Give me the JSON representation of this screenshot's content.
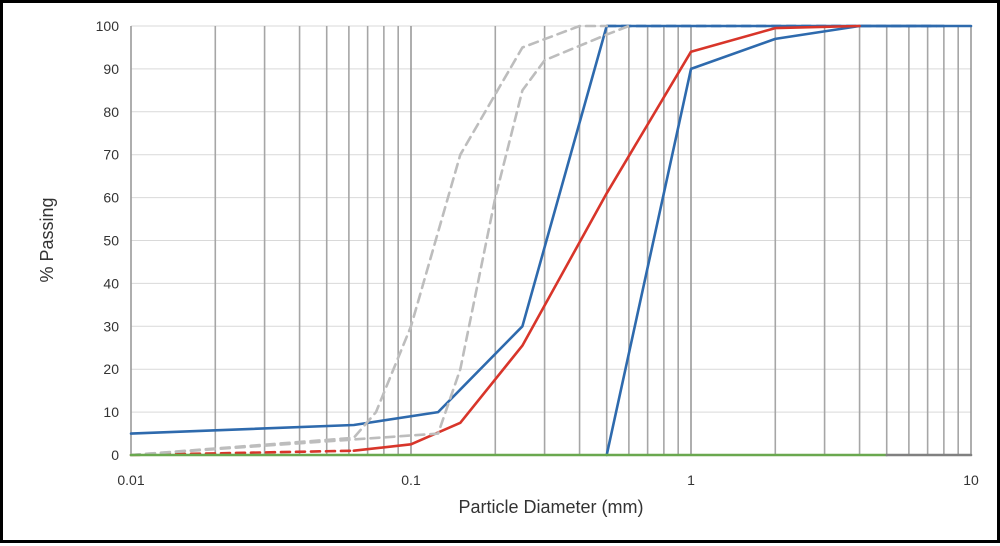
{
  "chart_data": {
    "type": "line",
    "title": "",
    "xlabel": "Particle  Diameter (mm)",
    "ylabel": "% Passing",
    "x_scale": "log",
    "xlim": [
      0.01,
      10
    ],
    "ylim": [
      0,
      100
    ],
    "x_tick_labels": [
      "0.01",
      "0.1",
      "1",
      "10"
    ],
    "y_tick_labels": [
      "0",
      "10",
      "20",
      "30",
      "40",
      "50",
      "60",
      "70",
      "80",
      "90",
      "100"
    ],
    "grid": {
      "x_major": true,
      "x_minor": true,
      "y_major": true
    },
    "legend": "none",
    "series": [
      {
        "color": "#2e6aad",
        "dash": "solid",
        "points": [
          [
            0.01,
            5
          ],
          [
            0.0625,
            7
          ],
          [
            0.125,
            10
          ],
          [
            0.25,
            30
          ],
          [
            0.5,
            100
          ],
          [
            10,
            100
          ]
        ]
      },
      {
        "color": "#2e6aad",
        "dash": "solid",
        "points": [
          [
            0.5,
            0
          ],
          [
            1,
            90
          ],
          [
            2,
            97
          ],
          [
            4,
            100
          ],
          [
            7.5,
            100
          ]
        ]
      },
      {
        "color": "#2e6aad",
        "dash": "dashed",
        "points": [
          [
            0.5,
            100
          ],
          [
            8,
            100
          ]
        ]
      },
      {
        "color": "#d8352a",
        "dash": "solid",
        "points": [
          [
            0.0625,
            1
          ],
          [
            0.1,
            2.5
          ],
          [
            0.15,
            7.5
          ],
          [
            0.25,
            25.5
          ],
          [
            0.5,
            61
          ],
          [
            1,
            94
          ],
          [
            2,
            99.5
          ],
          [
            4,
            100
          ]
        ]
      },
      {
        "color": "#d8352a",
        "dash": "dashed",
        "points": [
          [
            0.01,
            0
          ],
          [
            0.0625,
            1
          ]
        ]
      },
      {
        "color": "#bdbdbd",
        "dash": "dashed",
        "points": [
          [
            0.01,
            0
          ],
          [
            0.0625,
            4
          ],
          [
            0.075,
            10
          ],
          [
            0.1,
            30
          ],
          [
            0.15,
            70
          ],
          [
            0.25,
            95
          ],
          [
            0.4,
            100
          ],
          [
            0.5,
            100
          ]
        ]
      },
      {
        "color": "#bdbdbd",
        "dash": "dashed",
        "points": [
          [
            0.01,
            0
          ],
          [
            0.125,
            5
          ],
          [
            0.15,
            20
          ],
          [
            0.2,
            60
          ],
          [
            0.25,
            85
          ],
          [
            0.3,
            92
          ],
          [
            0.5,
            98
          ],
          [
            0.6,
            100
          ]
        ]
      },
      {
        "color": "#6aa84f",
        "dash": "solid",
        "points": [
          [
            0.01,
            0
          ],
          [
            5,
            0
          ]
        ]
      },
      {
        "color": "#808080",
        "dash": "solid",
        "points": [
          [
            5,
            0
          ],
          [
            10,
            0
          ]
        ]
      }
    ]
  }
}
